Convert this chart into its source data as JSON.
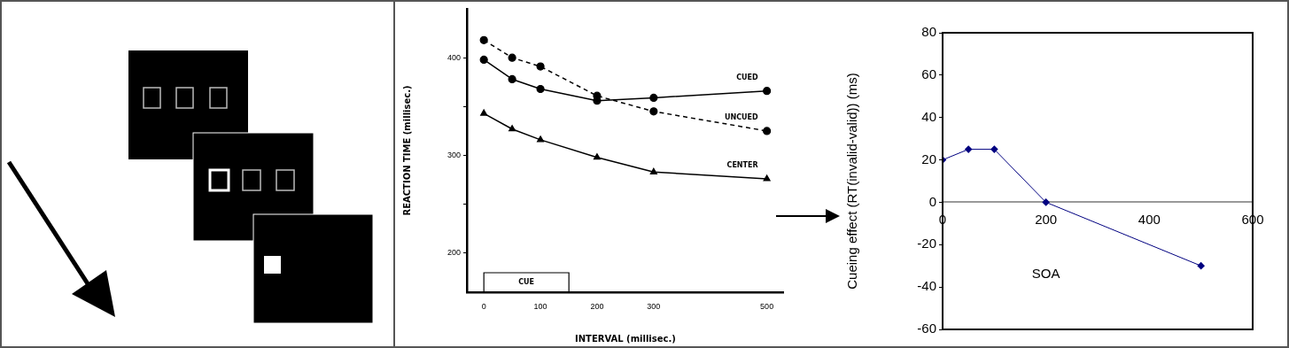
{
  "chart_data": [
    {
      "type": "line",
      "xlabel": "INTERVAL (millisec.)",
      "ylabel": "REACTION TIME (millisec.)",
      "x": [
        0,
        50,
        100,
        200,
        300,
        500
      ],
      "xlim": [
        -30,
        530
      ],
      "xticks": [
        0,
        100,
        200,
        300,
        500
      ],
      "ylim": [
        160,
        450
      ],
      "yticks": [
        200,
        {
          "value": 250,
          "label": null
        },
        300,
        {
          "value": 350,
          "label": null
        },
        400
      ],
      "series": [
        {
          "name": "CUED",
          "color": "#000000",
          "values": [
            398,
            378,
            368,
            356,
            359,
            366
          ],
          "marker": "circle",
          "line_style": "solid"
        },
        {
          "name": "UNCUED",
          "color": "#000000",
          "values": [
            418,
            400,
            391,
            361,
            345,
            325
          ],
          "marker": "circle",
          "line_style": "dashed"
        },
        {
          "name": "CENTER",
          "color": "#000000",
          "values": [
            343,
            327,
            316,
            298,
            283,
            276
          ],
          "marker": "triangle",
          "line_style": "solid"
        }
      ],
      "annotations": [
        "CUE"
      ]
    },
    {
      "type": "line",
      "xlabel": "SOA",
      "ylabel": "Cueing effect (RT(invalid-valid)) (ms)",
      "x": [
        0,
        50,
        100,
        200,
        500
      ],
      "xlim": [
        0,
        600
      ],
      "xticks": [
        0,
        200,
        400,
        600
      ],
      "ylim": [
        -60,
        80
      ],
      "yticks": [
        -60,
        -40,
        -20,
        0,
        20,
        40,
        60,
        80
      ],
      "series": [
        {
          "color": "#000080",
          "values": [
            20,
            25,
            25,
            0,
            -30
          ],
          "marker": "diamond",
          "line_style": "solid"
        }
      ]
    }
  ]
}
